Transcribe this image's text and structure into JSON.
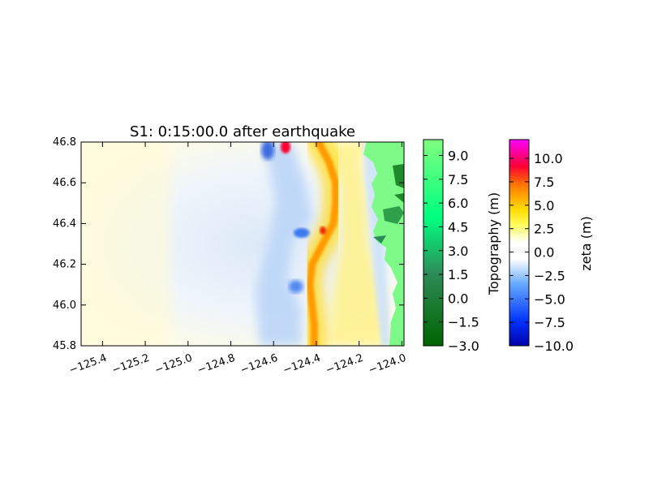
{
  "chart_data": {
    "type": "heatmap",
    "title": "S1: 0:15:00.0 after earthquake",
    "xlabel": "",
    "ylabel": "",
    "x_ticks": [
      "−125.4",
      "−125.2",
      "−125.0",
      "−124.8",
      "−124.6",
      "−124.4",
      "−124.2",
      "−124.0"
    ],
    "x_tick_values": [
      -125.4,
      -125.2,
      -125.0,
      -124.8,
      -124.6,
      -124.4,
      -124.2,
      -124.0
    ],
    "y_ticks": [
      "45.8",
      "46.0",
      "46.2",
      "46.4",
      "46.6",
      "46.8"
    ],
    "y_tick_values": [
      45.8,
      46.0,
      46.2,
      46.4,
      46.6,
      46.8
    ],
    "xlim": [
      -125.5,
      -123.99
    ],
    "ylim": [
      45.8,
      46.8
    ],
    "grid": false,
    "wave_front": [
      [
        46.8,
        -124.39
      ],
      [
        46.7,
        -124.34
      ],
      [
        46.6,
        -124.31
      ],
      [
        46.5,
        -124.31
      ],
      [
        46.4,
        -124.32
      ],
      [
        46.3,
        -124.37
      ],
      [
        46.2,
        -124.42
      ],
      [
        46.1,
        -124.43
      ],
      [
        46.0,
        -124.42
      ],
      [
        45.9,
        -124.41
      ],
      [
        45.8,
        -124.41
      ]
    ],
    "colorbars": [
      {
        "label": "Topography (m)",
        "ticks": [
          "−3.0",
          "−1.5",
          "0.0",
          "1.5",
          "3.0",
          "4.5",
          "6.0",
          "7.5",
          "9.0"
        ],
        "tick_values": [
          -3.0,
          -1.5,
          0.0,
          1.5,
          3.0,
          4.5,
          6.0,
          7.5,
          9.0
        ],
        "range": [
          -3.0,
          10.0
        ],
        "colors": [
          "#006400",
          "#2e8b57",
          "#00ff7f",
          "#7fff7f"
        ]
      },
      {
        "label": "zeta (m)",
        "ticks": [
          "−10.0",
          "−7.5",
          "−5.0",
          "−2.5",
          "0.0",
          "2.5",
          "5.0",
          "7.5",
          "10.0"
        ],
        "tick_values": [
          -10.0,
          -7.5,
          -5.0,
          -2.5,
          0.0,
          2.5,
          5.0,
          7.5,
          10.0
        ],
        "range": [
          -10.0,
          12.0
        ],
        "colors": [
          "#0000aa",
          "#0055ff",
          "#66aaff",
          "#ffffff",
          "#ffffff",
          "#ffff00",
          "#ff8800",
          "#ff0033",
          "#ff00ff"
        ]
      }
    ]
  }
}
